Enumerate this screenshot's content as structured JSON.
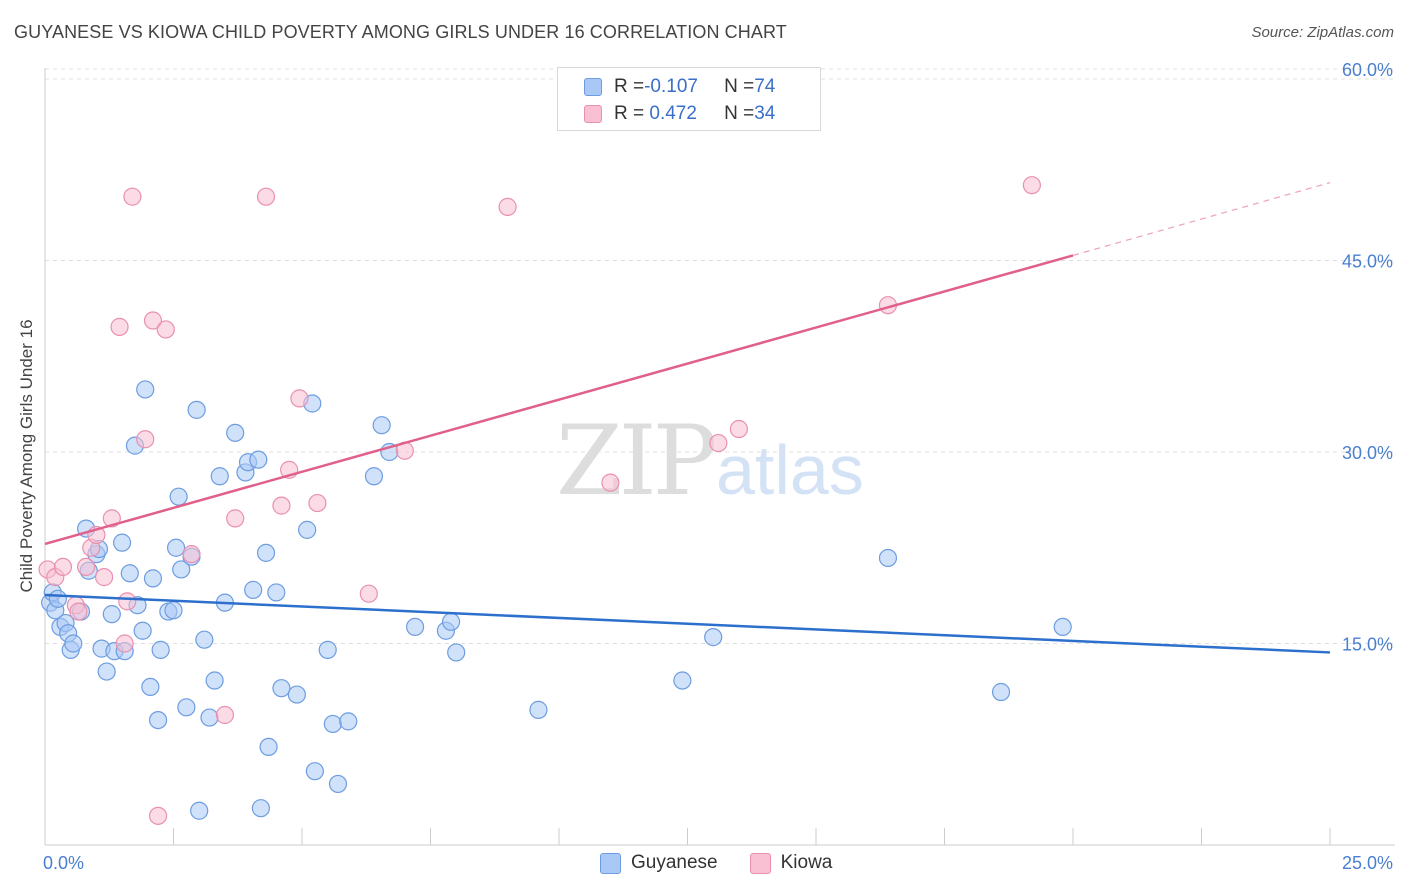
{
  "title": "GUYANESE VS KIOWA CHILD POVERTY AMONG GIRLS UNDER 16 CORRELATION CHART",
  "source": "Source: ZipAtlas.com",
  "watermark": {
    "zip": "ZIP",
    "atlas": "atlas"
  },
  "legend": {
    "rows": [
      {
        "r_label": "R = ",
        "r_value": "-0.107",
        "n_label": "N = ",
        "n_value": "74"
      },
      {
        "r_label": "R = ",
        "r_value": " 0.472",
        "n_label": "N = ",
        "n_value": "34"
      }
    ]
  },
  "colors": {
    "guyanese_fill": "#aac8f5",
    "guyanese_stroke": "#6d9de0",
    "guyanese_line": "#2c6fcc",
    "kiowa_fill": "#f8c0d2",
    "kiowa_stroke": "#e990b0",
    "kiowa_line": "#e0608a",
    "grid": "#e0e0e0",
    "tick_label": "#4a7fd0"
  },
  "chart_data": {
    "type": "scatter",
    "xlabel": "",
    "ylabel": "Child Poverty Among Girls Under 16",
    "xlim": [
      0,
      25
    ],
    "ylim": [
      0,
      60
    ],
    "x_tick_labels": [
      "0.0%",
      "25.0%"
    ],
    "y_ticks": [
      15,
      30,
      45,
      60
    ],
    "y_tick_labels": [
      "15.0%",
      "30.0%",
      "45.0%",
      "60.0%"
    ],
    "grid": true,
    "legend_position": "bottom-center",
    "series": [
      {
        "name": "Guyanese",
        "color": "#aac8f5",
        "trend": {
          "x": [
            0,
            25
          ],
          "y": [
            18.8,
            14.3
          ]
        },
        "points": [
          [
            0.1,
            18.2
          ],
          [
            0.2,
            17.6
          ],
          [
            0.15,
            19.0
          ],
          [
            0.3,
            16.3
          ],
          [
            0.4,
            16.6
          ],
          [
            0.45,
            15.8
          ],
          [
            0.5,
            14.5
          ],
          [
            0.55,
            15.0
          ],
          [
            0.7,
            17.5
          ],
          [
            0.8,
            24.0
          ],
          [
            0.85,
            20.7
          ],
          [
            1.0,
            22.0
          ],
          [
            1.05,
            22.4
          ],
          [
            1.1,
            14.6
          ],
          [
            1.2,
            12.8
          ],
          [
            1.3,
            17.3
          ],
          [
            1.35,
            14.4
          ],
          [
            1.5,
            22.9
          ],
          [
            1.55,
            14.4
          ],
          [
            1.65,
            20.5
          ],
          [
            1.75,
            30.5
          ],
          [
            1.8,
            18.0
          ],
          [
            1.9,
            16.0
          ],
          [
            1.95,
            34.9
          ],
          [
            2.05,
            11.6
          ],
          [
            2.1,
            20.1
          ],
          [
            2.2,
            9.0
          ],
          [
            2.25,
            14.5
          ],
          [
            2.4,
            17.5
          ],
          [
            2.5,
            17.6
          ],
          [
            2.55,
            22.5
          ],
          [
            2.6,
            26.5
          ],
          [
            2.65,
            20.8
          ],
          [
            2.75,
            10.0
          ],
          [
            2.85,
            21.8
          ],
          [
            2.95,
            33.3
          ],
          [
            3.0,
            1.9
          ],
          [
            3.1,
            15.3
          ],
          [
            3.2,
            9.2
          ],
          [
            3.3,
            12.1
          ],
          [
            3.4,
            28.1
          ],
          [
            3.5,
            18.2
          ],
          [
            3.7,
            31.5
          ],
          [
            3.9,
            28.4
          ],
          [
            3.95,
            29.2
          ],
          [
            4.05,
            19.2
          ],
          [
            4.15,
            29.4
          ],
          [
            4.2,
            2.1
          ],
          [
            4.3,
            22.1
          ],
          [
            4.35,
            6.9
          ],
          [
            4.5,
            19.0
          ],
          [
            4.6,
            11.5
          ],
          [
            4.9,
            11.0
          ],
          [
            5.1,
            23.9
          ],
          [
            5.2,
            33.8
          ],
          [
            5.25,
            5.0
          ],
          [
            5.5,
            14.5
          ],
          [
            5.6,
            8.7
          ],
          [
            5.7,
            4.0
          ],
          [
            5.9,
            8.9
          ],
          [
            6.4,
            28.1
          ],
          [
            6.55,
            32.1
          ],
          [
            6.7,
            30.0
          ],
          [
            7.2,
            16.3
          ],
          [
            7.8,
            16.0
          ],
          [
            7.9,
            16.7
          ],
          [
            8.0,
            14.3
          ],
          [
            9.6,
            9.8
          ],
          [
            12.4,
            12.1
          ],
          [
            13.0,
            15.5
          ],
          [
            16.4,
            21.7
          ],
          [
            18.6,
            11.2
          ],
          [
            19.8,
            16.3
          ],
          [
            0.25,
            18.5
          ]
        ]
      },
      {
        "name": "Kiowa",
        "color": "#f8c0d2",
        "trend": {
          "x": [
            0,
            20
          ],
          "y": [
            22.8,
            45.4
          ]
        },
        "trend_dashed": {
          "x": [
            20,
            25
          ],
          "y": [
            45.4,
            51.1
          ]
        },
        "points": [
          [
            0.05,
            20.8
          ],
          [
            0.2,
            20.2
          ],
          [
            0.35,
            21.0
          ],
          [
            0.6,
            18.0
          ],
          [
            0.65,
            17.5
          ],
          [
            0.8,
            21.0
          ],
          [
            0.9,
            22.5
          ],
          [
            1.0,
            23.5
          ],
          [
            1.15,
            20.2
          ],
          [
            1.3,
            24.8
          ],
          [
            1.45,
            39.8
          ],
          [
            1.55,
            15.0
          ],
          [
            1.6,
            18.3
          ],
          [
            1.7,
            50.0
          ],
          [
            1.95,
            31.0
          ],
          [
            2.1,
            40.3
          ],
          [
            2.2,
            1.5
          ],
          [
            2.35,
            39.6
          ],
          [
            2.85,
            22.0
          ],
          [
            3.5,
            9.4
          ],
          [
            3.7,
            24.8
          ],
          [
            4.3,
            50.0
          ],
          [
            4.6,
            25.8
          ],
          [
            4.75,
            28.6
          ],
          [
            4.95,
            34.2
          ],
          [
            5.3,
            26.0
          ],
          [
            6.3,
            18.9
          ],
          [
            7.0,
            30.1
          ],
          [
            9.0,
            49.2
          ],
          [
            11.0,
            27.6
          ],
          [
            13.1,
            30.7
          ],
          [
            13.5,
            31.8
          ],
          [
            16.4,
            41.5
          ],
          [
            19.2,
            50.9
          ]
        ]
      }
    ]
  },
  "bottom_legend": [
    {
      "label": "Guyanese"
    },
    {
      "label": "Kiowa"
    }
  ]
}
